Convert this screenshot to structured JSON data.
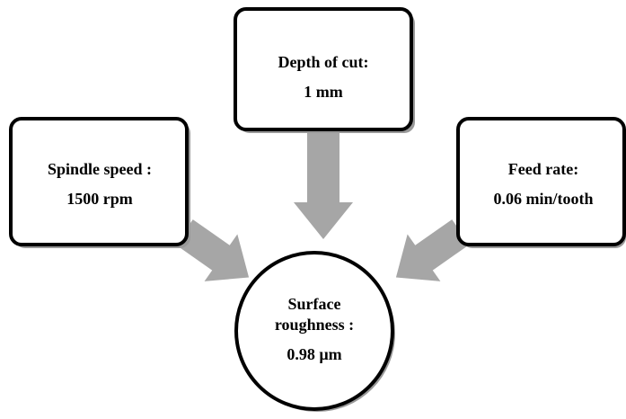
{
  "nodes": [
    {
      "lines": [
        "Depth of cut:",
        "1 mm"
      ]
    },
    {
      "lines": [
        "Spindle speed :",
        "1500 rpm"
      ]
    },
    {
      "lines": [
        "Feed rate:",
        "0.06 min/tooth"
      ]
    },
    {
      "lines": [
        "Surface",
        "roughness :",
        "0.98 µm"
      ]
    }
  ]
}
